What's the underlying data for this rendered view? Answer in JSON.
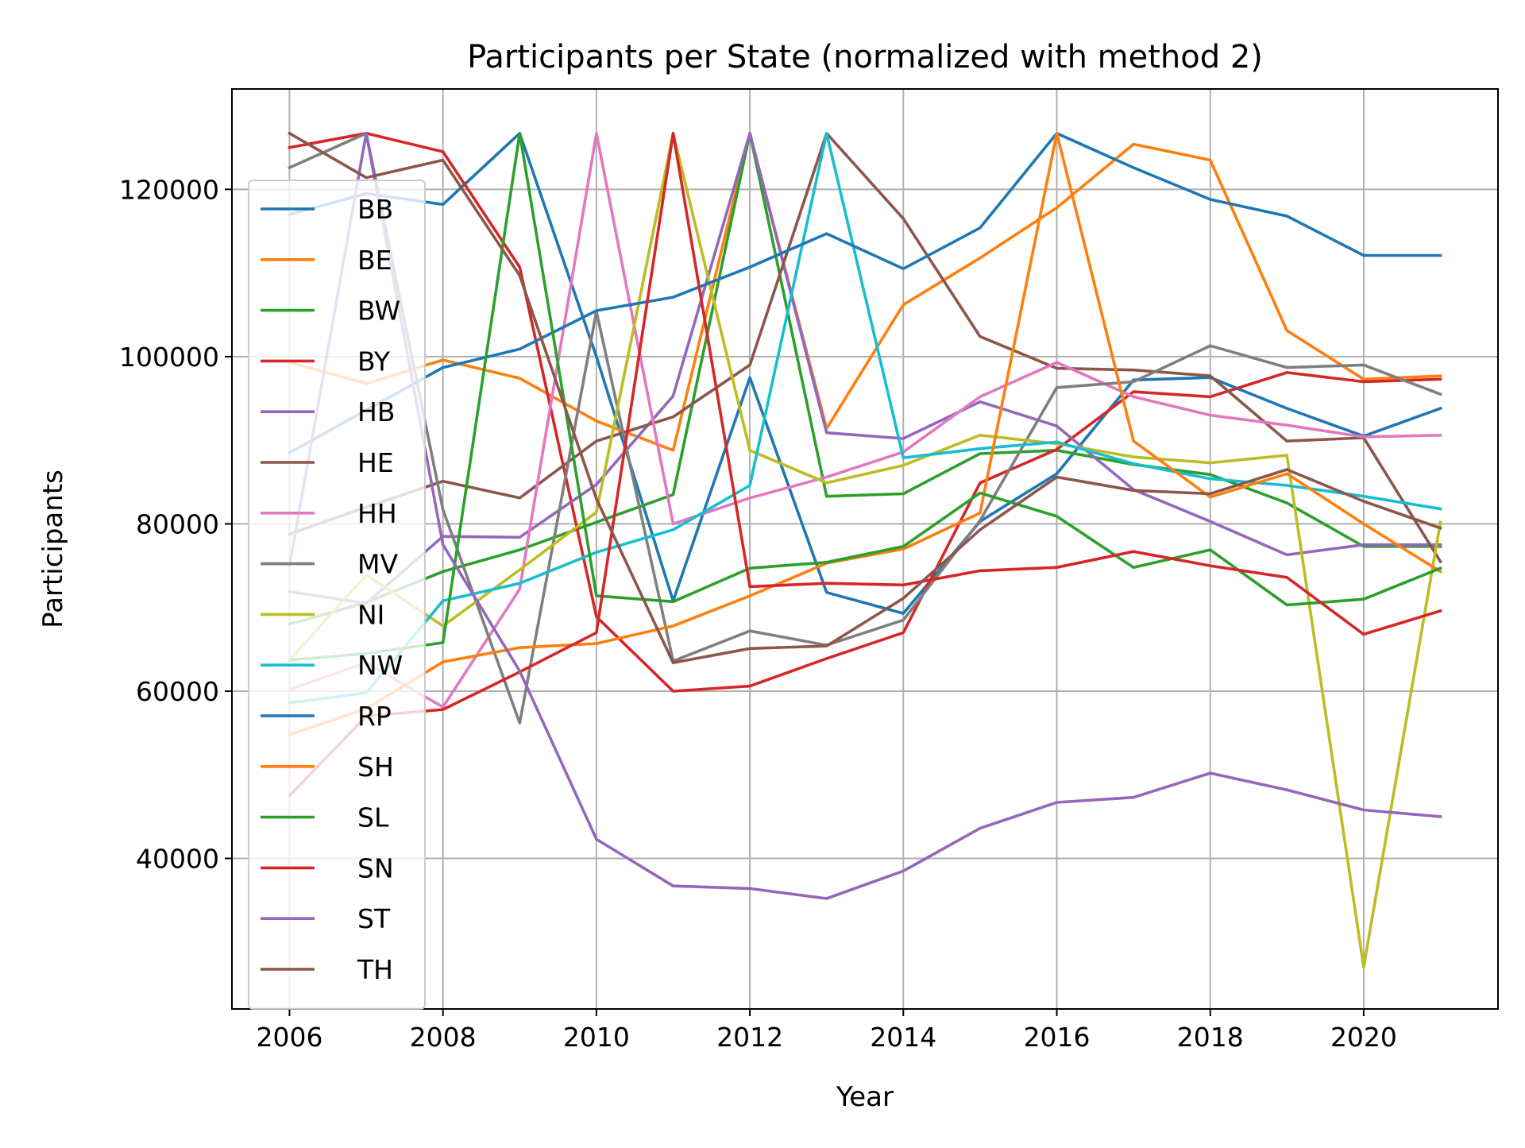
{
  "chart_data": {
    "type": "line",
    "title": "Participants per State (normalized with method 2)",
    "xlabel": "Year",
    "ylabel": "Participants",
    "xlim": [
      2005.25,
      2021.75
    ],
    "ylim": [
      22000,
      132000
    ],
    "xticks": [
      2006,
      2008,
      2010,
      2012,
      2014,
      2016,
      2018,
      2020
    ],
    "yticks": [
      40000,
      60000,
      80000,
      100000,
      120000
    ],
    "grid": true,
    "legend_position": "upper-left",
    "x": [
      2006,
      2007,
      2008,
      2009,
      2010,
      2011,
      2012,
      2013,
      2014,
      2015,
      2016,
      2017,
      2018,
      2019,
      2020,
      2021
    ],
    "series": [
      {
        "name": "BB",
        "color": "#1f77b4",
        "values": [
          117000,
          119500,
          118200,
          126700,
          100000,
          70800,
          97500,
          71800,
          69300,
          80300,
          86000,
          97200,
          97500,
          93800,
          90500,
          93800
        ]
      },
      {
        "name": "BE",
        "color": "#ff7f0e",
        "values": [
          99300,
          96800,
          99600,
          97400,
          92300,
          88800,
          126700,
          91400,
          106200,
          111800,
          117800,
          125400,
          123500,
          103100,
          97300,
          97700
        ]
      },
      {
        "name": "BW",
        "color": "#2ca02c",
        "values": [
          68000,
          70600,
          74300,
          76900,
          80200,
          83500,
          126700,
          83300,
          83600,
          88400,
          88800,
          87100,
          85900,
          82500,
          77300,
          77300
        ]
      },
      {
        "name": "BY",
        "color": "#d62728",
        "values": [
          125000,
          126700,
          124500,
          110700,
          68900,
          60000,
          60600,
          63900,
          67000,
          84900,
          88900,
          95800,
          95200,
          98100,
          97000,
          97300
        ]
      },
      {
        "name": "HB",
        "color": "#9467bd",
        "values": [
          71900,
          70500,
          78500,
          78400,
          84700,
          95300,
          126700,
          90900,
          90200,
          94600,
          91700,
          84100,
          80300,
          76300,
          77500,
          77500
        ]
      },
      {
        "name": "HE",
        "color": "#8c564b",
        "values": [
          78800,
          82000,
          85100,
          83100,
          89900,
          92800,
          99000,
          126700,
          116500,
          102400,
          98600,
          98400,
          97700,
          89900,
          90300,
          75500
        ]
      },
      {
        "name": "HH",
        "color": "#e377c2",
        "values": [
          60200,
          63400,
          58100,
          72200,
          126700,
          80000,
          83100,
          85600,
          88600,
          95200,
          99300,
          95200,
          93000,
          91800,
          90400,
          90600
        ]
      },
      {
        "name": "MV",
        "color": "#7f7f7f",
        "values": [
          122600,
          126700,
          81700,
          56200,
          105400,
          63600,
          67200,
          65500,
          68500,
          80400,
          96300,
          97000,
          101300,
          98700,
          99000,
          95500
        ]
      },
      {
        "name": "NI",
        "color": "#bcbd22",
        "values": [
          63700,
          73900,
          67800,
          74500,
          81400,
          126700,
          88800,
          84900,
          87000,
          90600,
          89600,
          88000,
          87300,
          88200,
          27000,
          80200
        ]
      },
      {
        "name": "NW",
        "color": "#17becf",
        "values": [
          58600,
          59800,
          70800,
          72900,
          76600,
          79300,
          84600,
          126700,
          87900,
          89000,
          89800,
          87200,
          85400,
          84600,
          83300,
          81800
        ]
      },
      {
        "name": "RP",
        "color": "#1f77b4",
        "values": [
          88500,
          93600,
          98700,
          100900,
          105500,
          107100,
          110700,
          114700,
          110500,
          115400,
          126700,
          122600,
          118800,
          116800,
          112100,
          112100
        ]
      },
      {
        "name": "SH",
        "color": "#ff7f0e",
        "values": [
          54800,
          57900,
          63500,
          65200,
          65700,
          67800,
          71400,
          75300,
          77000,
          81300,
          126700,
          89900,
          83200,
          86000,
          80000,
          74300
        ]
      },
      {
        "name": "SL",
        "color": "#2ca02c",
        "values": [
          63700,
          64500,
          65800,
          126700,
          71400,
          70700,
          74700,
          75400,
          77300,
          83700,
          80900,
          74800,
          76900,
          70300,
          71000,
          74700
        ]
      },
      {
        "name": "SN",
        "color": "#d62728",
        "values": [
          47500,
          57000,
          57800,
          62300,
          67000,
          126700,
          72500,
          72900,
          72700,
          74400,
          74800,
          76700,
          75000,
          73600,
          66800,
          69600
        ]
      },
      {
        "name": "ST",
        "color": "#9467bd",
        "values": [
          75000,
          126700,
          77500,
          62400,
          42300,
          36700,
          36400,
          35200,
          38500,
          43600,
          46700,
          47300,
          50200,
          48200,
          45800,
          45000
        ]
      },
      {
        "name": "TH",
        "color": "#8c564b",
        "values": [
          126700,
          121400,
          123500,
          109700,
          83000,
          63400,
          65100,
          65400,
          71100,
          79300,
          85600,
          84000,
          83600,
          86500,
          82700,
          79500
        ]
      }
    ]
  }
}
